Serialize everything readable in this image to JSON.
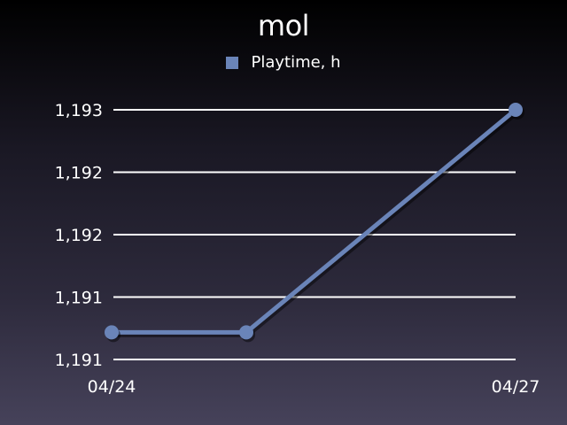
{
  "chart_data": {
    "type": "line",
    "title": "mol",
    "xlabel": "",
    "ylabel": "",
    "x": [
      "04/24",
      "04/25",
      "04/27"
    ],
    "x_tick_labels": [
      "04/24",
      "04/27"
    ],
    "y_tick_labels": [
      "1,193",
      "1,192",
      "1,192",
      "1,191",
      "1,191"
    ],
    "ylim": [
      1190.7,
      1193.0
    ],
    "series": [
      {
        "name": "Playtime, h",
        "values": [
          1190.95,
          1190.95,
          1193.0
        ],
        "color": "#6a84b8"
      }
    ],
    "grid": true,
    "legend_position": "top-center"
  }
}
